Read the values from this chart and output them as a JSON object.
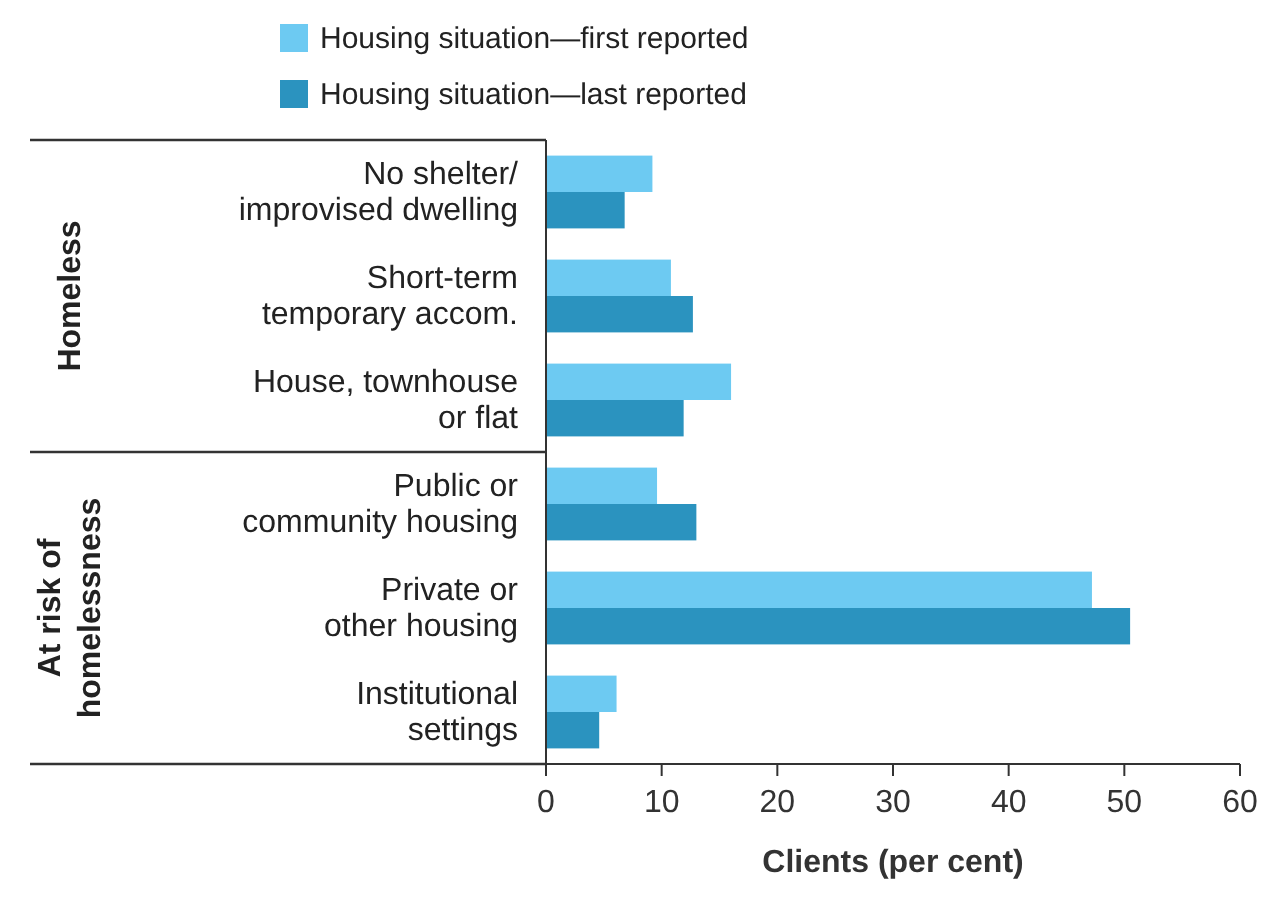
{
  "chart_data": {
    "type": "bar",
    "orientation": "horizontal",
    "xlabel": "Clients (per cent)",
    "categories": [
      "No shelter/\nimprovised dwelling",
      "Short-term\ntemporary accom.",
      "House, townhouse\nor flat",
      "Public or\ncommunity housing",
      "Private or\nother housing",
      "Institutional\nsettings"
    ],
    "series": [
      {
        "name": "Housing situation—first reported",
        "color": "#6dcaf2",
        "values": [
          9.2,
          10.8,
          16.0,
          9.6,
          47.2,
          6.1
        ]
      },
      {
        "name": "Housing situation—last reported",
        "color": "#2b93bf",
        "values": [
          6.8,
          12.7,
          11.9,
          13.0,
          50.5,
          4.6
        ]
      }
    ],
    "xlim": [
      0,
      60
    ],
    "xticks": [
      0,
      10,
      20,
      30,
      40,
      50,
      60
    ],
    "legend": "top",
    "grid": false,
    "annotations": [
      "Homeless",
      "At risk of\nhomelessness"
    ]
  }
}
